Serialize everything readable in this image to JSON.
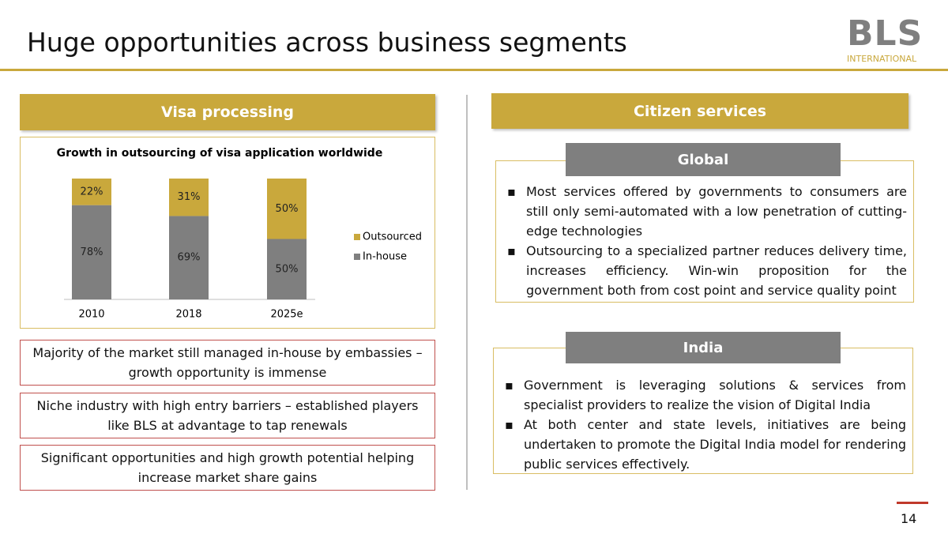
{
  "slide": {
    "title": "Huge opportunities across business segments",
    "logo": {
      "name": "BLS",
      "subtitle": "INTERNATIONAL"
    },
    "page_number": "14",
    "visa": {
      "header": "Visa processing",
      "points": [
        "Majority of the market still managed in-house by embassies – growth opportunity is immense",
        "Niche industry with high entry barriers – established players like BLS at advantage to tap renewals",
        "Significant opportunities and high growth potential helping increase market share gains"
      ]
    },
    "citizen": {
      "header": "Citizen services",
      "global": {
        "label": "Global",
        "bullets": [
          "Most services offered by governments to consumers are still only semi-automated with a low penetration of cutting-edge technologies",
          "Outsourcing to a specialized partner reduces delivery time,  increases efficiency. Win-win proposition for the government both from cost point and service quality point"
        ]
      },
      "india": {
        "label": "India",
        "bullets": [
          "Government is leveraging solutions & services from specialist providers to realize the vision of Digital India",
          "At both center and state levels, initiatives are being undertaken to promote the Digital India model for rendering public services effectively."
        ]
      }
    }
  },
  "chart_data": {
    "type": "stacked-bar",
    "title": "Growth in outsourcing of visa application worldwide",
    "categories": [
      "2010",
      "2018",
      "2025e"
    ],
    "ylim": [
      0,
      100
    ],
    "series": [
      {
        "name": "In-house",
        "color": "#7f7f7f",
        "values": [
          78,
          69,
          50
        ],
        "value_labels": [
          "78%",
          "69%",
          "50%"
        ]
      },
      {
        "name": "Outsourced",
        "color": "#c9a83c",
        "values": [
          22,
          31,
          50
        ],
        "value_labels": [
          "22%",
          "31%",
          "50%"
        ]
      }
    ]
  }
}
